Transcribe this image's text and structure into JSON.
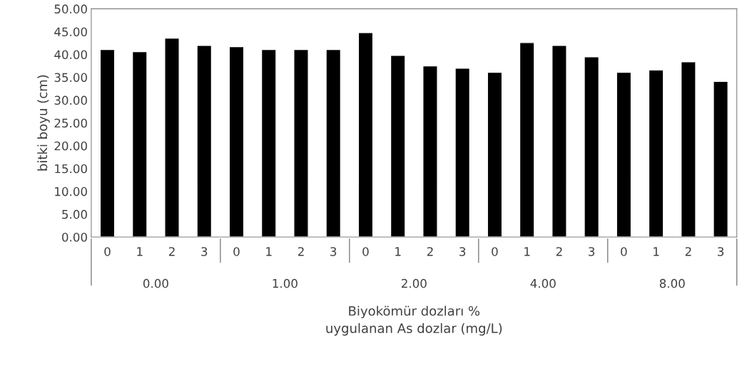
{
  "chart_data": {
    "type": "bar",
    "xlabel": "Biyokömür dozları %\nuygulanan As dozlar (mg/L)",
    "ylabel": "bitki boyu (cm)",
    "categories": [
      "0",
      "1",
      "2",
      "3",
      "0",
      "1",
      "2",
      "3",
      "0",
      "1",
      "2",
      "3",
      "0",
      "1",
      "2",
      "3",
      "0",
      "1",
      "2",
      "3"
    ],
    "annotations": [
      "0.00",
      "1.00",
      "2.00",
      "4.00",
      "8.00"
    ],
    "values": [
      41.1,
      40.6,
      43.6,
      42.0,
      41.7,
      41.1,
      41.1,
      41.1,
      44.8,
      39.8,
      37.5,
      37.0,
      36.1,
      42.6,
      42.0,
      39.5,
      36.1,
      36.6,
      38.4,
      34.1
    ],
    "color": "#000000",
    "ylim": [
      0,
      50
    ],
    "yticks": [
      {
        "value": 0,
        "label": "0.00"
      },
      {
        "value": 5,
        "label": "5.00"
      },
      {
        "value": 10,
        "label": "10.00"
      },
      {
        "value": 15,
        "label": "15.00"
      },
      {
        "value": 20,
        "label": "20.00"
      },
      {
        "value": 25,
        "label": "25.00"
      },
      {
        "value": 30,
        "label": "30.00"
      },
      {
        "value": 35,
        "label": "35.00"
      },
      {
        "value": 40,
        "label": "40.00"
      },
      {
        "value": 45,
        "label": "45.00"
      },
      {
        "value": 50,
        "label": "50.00"
      }
    ],
    "grid": false,
    "legend": false
  }
}
